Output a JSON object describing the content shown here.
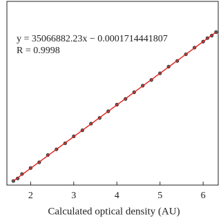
{
  "chart_data": {
    "type": "scatter",
    "equation": "y = 35066882.23x − 0.0001714441807",
    "r_text": "R = 0.9998",
    "x_label": "Calculated optical density (AU)",
    "x": [
      1.6,
      1.7,
      1.8,
      2.0,
      2.2,
      2.4,
      2.6,
      2.8,
      3.0,
      3.2,
      3.4,
      3.6,
      3.8,
      4.0,
      4.2,
      4.4,
      4.6,
      4.8,
      5.0,
      5.2,
      5.4,
      5.6,
      5.8,
      6.0,
      6.1,
      6.2,
      6.3
    ],
    "values": [
      1.6,
      1.68,
      1.82,
      2.01,
      2.19,
      2.42,
      2.6,
      2.79,
      3.01,
      3.2,
      3.41,
      3.59,
      3.8,
      4.01,
      4.19,
      4.4,
      4.61,
      4.79,
      5.0,
      5.21,
      5.39,
      5.6,
      5.81,
      6.0,
      6.11,
      6.19,
      6.3
    ],
    "color": "#222222",
    "fit": {
      "x": [
        1.6,
        6.3
      ],
      "values": [
        1.6,
        6.3
      ],
      "color": "#e0201b"
    },
    "xlim": [
      1.45,
      6.35
    ],
    "ylim": [
      1.47,
      7.27
    ],
    "xticks": [
      2,
      3,
      4,
      5,
      6
    ]
  }
}
